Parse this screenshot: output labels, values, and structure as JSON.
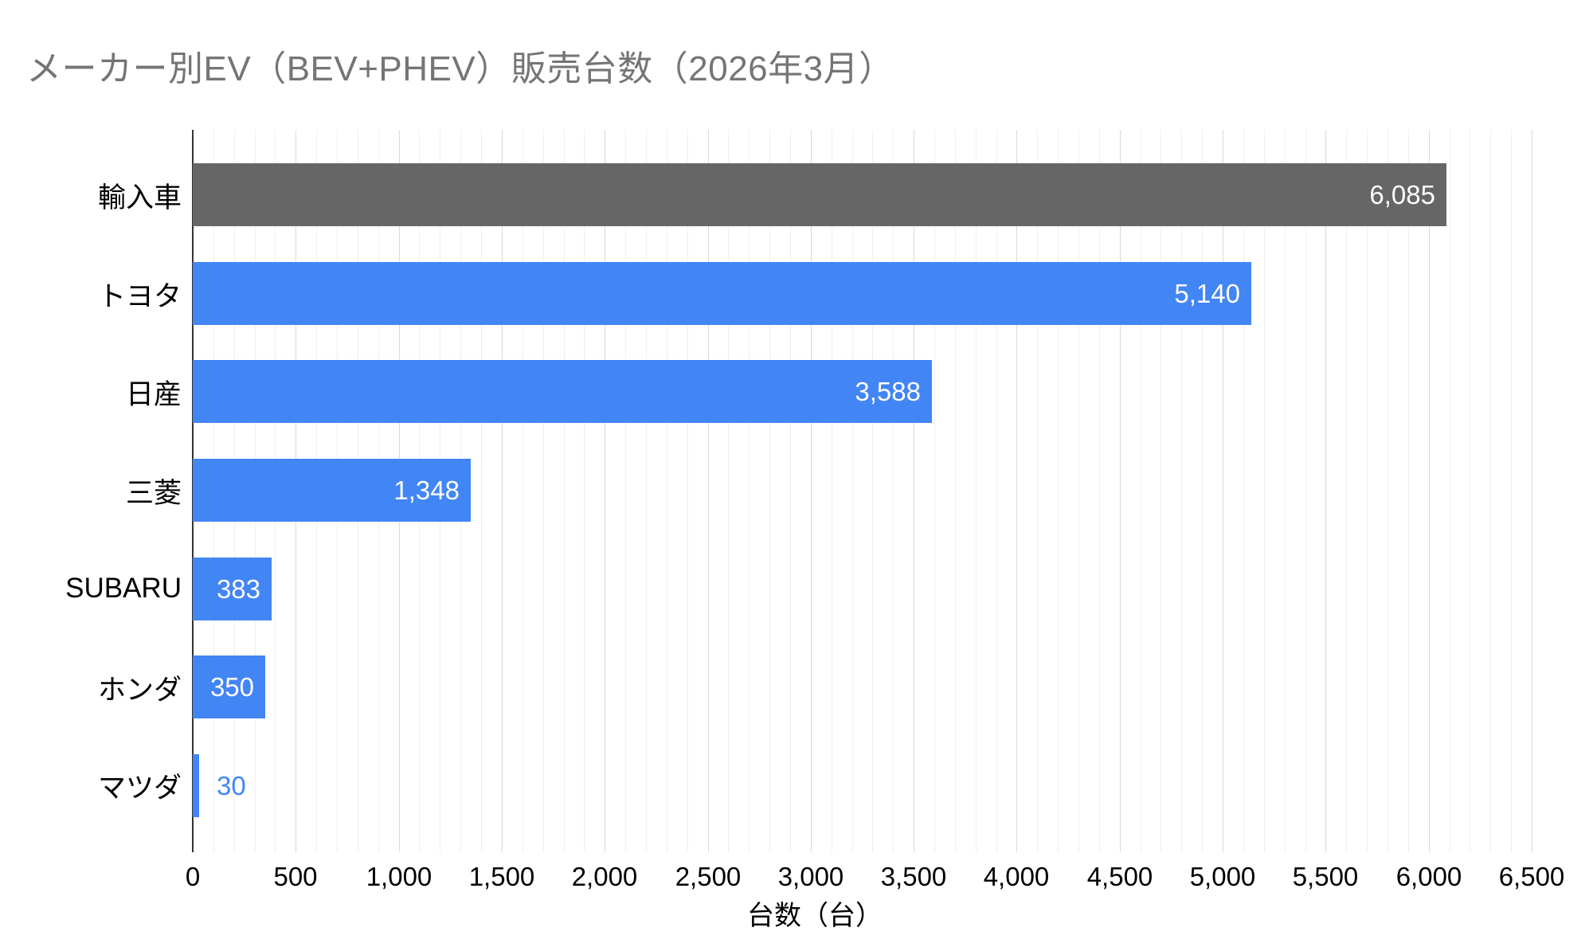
{
  "chart_data": {
    "type": "bar",
    "orientation": "horizontal",
    "title": "メーカー別EV（BEV+PHEV）販売台数（2026年3月）",
    "xlabel": "台数（台）",
    "ylabel": "",
    "categories": [
      "輸入車",
      "トヨタ",
      "日産",
      "三菱",
      "SUBARU",
      "ホンダ",
      "マツダ"
    ],
    "values": [
      6085,
      5140,
      3588,
      1348,
      383,
      350,
      30
    ],
    "value_labels": [
      "6,085",
      "5,140",
      "3,588",
      "1,348",
      "383",
      "350",
      "30"
    ],
    "bar_colors": [
      "#666666",
      "#4285F4",
      "#4285F4",
      "#4285F4",
      "#4285F4",
      "#4285F4",
      "#4285F4"
    ],
    "xlim": [
      0,
      6500
    ],
    "major_tick_interval": 500,
    "minor_tick_interval": 100,
    "x_tick_values": [
      0,
      500,
      1000,
      1500,
      2000,
      2500,
      3000,
      3500,
      4000,
      4500,
      5000,
      5500,
      6000,
      6500
    ],
    "x_tick_labels": [
      "0",
      "500",
      "1,000",
      "1,500",
      "2,000",
      "2,500",
      "3,000",
      "3,500",
      "4,000",
      "4,500",
      "5,000",
      "5,500",
      "6,000",
      "6,500"
    ],
    "grid": true,
    "legend": false
  },
  "colors": {
    "background": "#ffffff",
    "title_text": "#757575",
    "axis_line": "#333333",
    "gridline_minor": "#efefef",
    "gridline_major": "#d9d9d9",
    "tick_label": "#000000",
    "category_label": "#000000",
    "bar_blue": "#4285F4",
    "bar_gray": "#666666",
    "value_label_inside": "#ffffff"
  }
}
